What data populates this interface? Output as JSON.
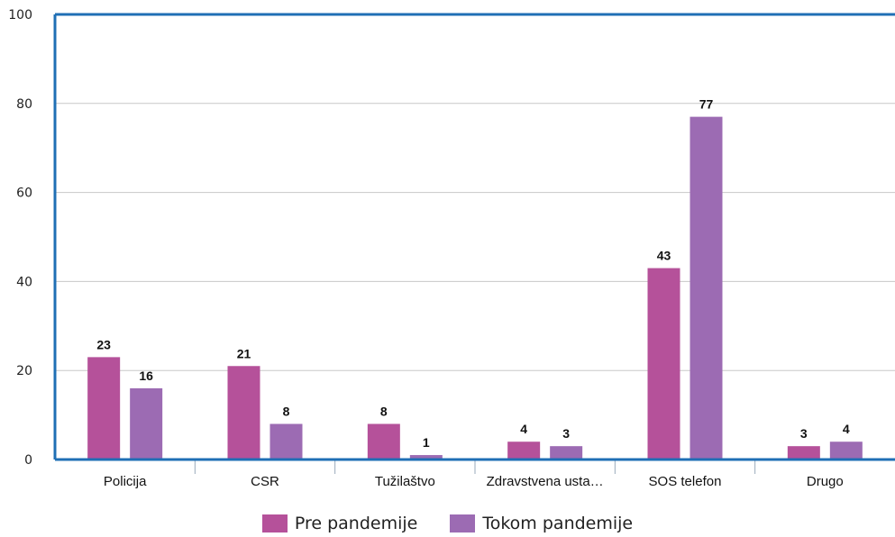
{
  "chart_data": {
    "type": "bar",
    "categories": [
      "Policija",
      "CSR",
      "Tužilaštvo",
      "Zdravstvena usta…",
      "SOS telefon",
      "Drugo"
    ],
    "series": [
      {
        "name": "Pre pandemije",
        "values": [
          23,
          21,
          8,
          4,
          43,
          3
        ],
        "labels": [
          "23",
          "21",
          "8",
          "4",
          "43",
          "3"
        ],
        "color": "#b5519a"
      },
      {
        "name": "Tokom pandemije",
        "values": [
          16,
          8,
          1,
          3,
          77,
          4
        ],
        "labels": [
          "16",
          "8",
          "1",
          "3",
          "77",
          "4"
        ],
        "color": "#9c6bb3"
      }
    ],
    "ylim": [
      0,
      100
    ],
    "yticks": [
      "0",
      "20",
      "40",
      "60",
      "80",
      "100"
    ],
    "grid": true,
    "legend_position": "bottom"
  },
  "colors": {
    "axis": "#1f6fb5",
    "grid": "#c8c8c8"
  }
}
